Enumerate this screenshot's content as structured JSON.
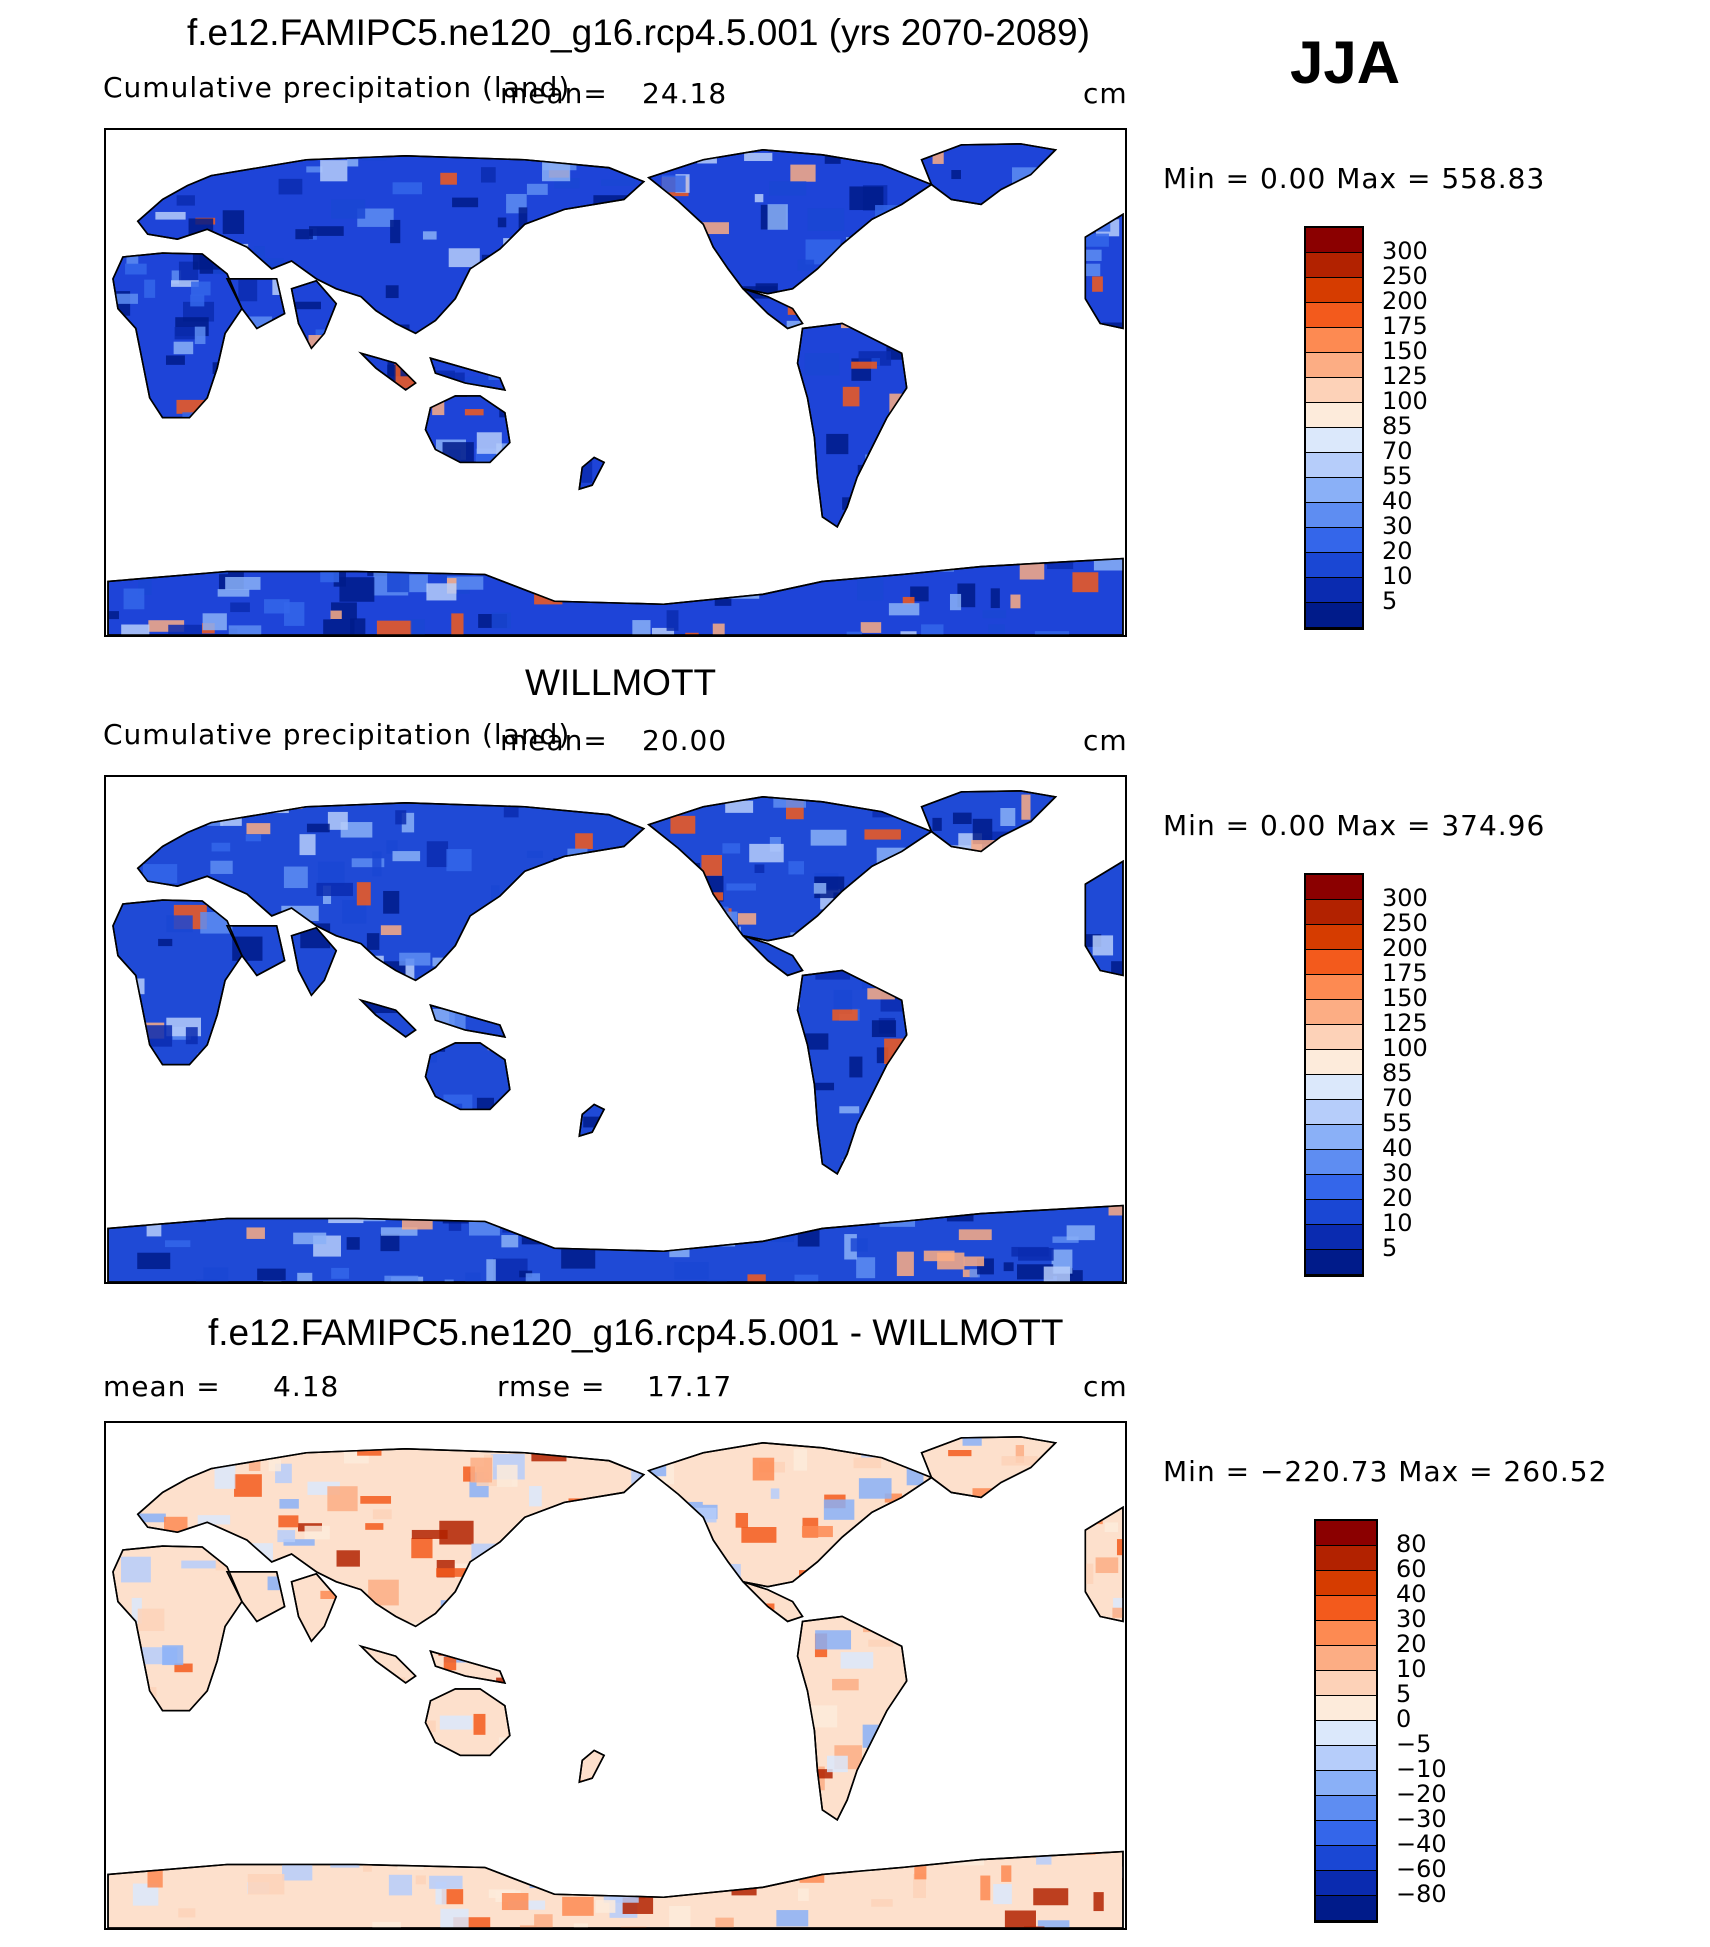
{
  "season": "JJA",
  "unit": "cm",
  "panels": [
    {
      "id": "model",
      "title": "f.e12.FAMIPC5.ne120_g16.rcp4.5.001 (yrs 2070-2089)",
      "subtitle": "Cumulative precipitation (land)",
      "mean_label": "mean=",
      "mean": "24.18",
      "minmax": "Min  =     0.00  Max  =  558.83",
      "legend": [
        "300",
        "250",
        "200",
        "175",
        "150",
        "125",
        "100",
        "85",
        "70",
        "55",
        "40",
        "30",
        "20",
        "10",
        "5"
      ],
      "palette": [
        "#8b0000",
        "#b22200",
        "#d63c00",
        "#f35a1c",
        "#fd8a52",
        "#fcad84",
        "#fdd2b8",
        "#fdebdb",
        "#dbe8fb",
        "#b6cdfa",
        "#8ab0f7",
        "#5e8df2",
        "#3466ea",
        "#1a47d4",
        "#0a2bb0",
        "#001b8a"
      ],
      "land_base": "#1e44d8"
    },
    {
      "id": "obs",
      "title": "WILLMOTT",
      "subtitle": "Cumulative precipitation (land)",
      "mean_label": "mean=",
      "mean": "20.00",
      "minmax": "Min  =     0.00  Max  =  374.96",
      "legend": [
        "300",
        "250",
        "200",
        "175",
        "150",
        "125",
        "100",
        "85",
        "70",
        "55",
        "40",
        "30",
        "20",
        "10",
        "5"
      ],
      "palette": [
        "#8b0000",
        "#b22200",
        "#d63c00",
        "#f35a1c",
        "#fd8a52",
        "#fcad84",
        "#fdd2b8",
        "#fdebdb",
        "#dbe8fb",
        "#b6cdfa",
        "#8ab0f7",
        "#5e8df2",
        "#3466ea",
        "#1a47d4",
        "#0a2bb0",
        "#001b8a"
      ],
      "land_base": "#1f4ad6"
    },
    {
      "id": "diff",
      "title": "f.e12.FAMIPC5.ne120_g16.rcp4.5.001 - WILLMOTT",
      "mean_label": "mean  =",
      "mean": "4.18",
      "rmse_label": "rmse  =",
      "rmse": "17.17",
      "minmax": "Min  = −220.73  Max  =  260.52",
      "legend": [
        "80",
        "60",
        "40",
        "30",
        "20",
        "10",
        "5",
        "0",
        "−5",
        "−10",
        "−20",
        "−30",
        "−40",
        "−60",
        "−80"
      ],
      "palette": [
        "#8b0000",
        "#b22200",
        "#d63c00",
        "#f35a1c",
        "#fd8a52",
        "#fcad84",
        "#fdd2b8",
        "#fdebdb",
        "#dbe8fb",
        "#b6cdfa",
        "#8ab0f7",
        "#5e8df2",
        "#3466ea",
        "#1a47d4",
        "#0a2bb0",
        "#001b8a"
      ],
      "land_base": "#fde0cc"
    }
  ]
}
